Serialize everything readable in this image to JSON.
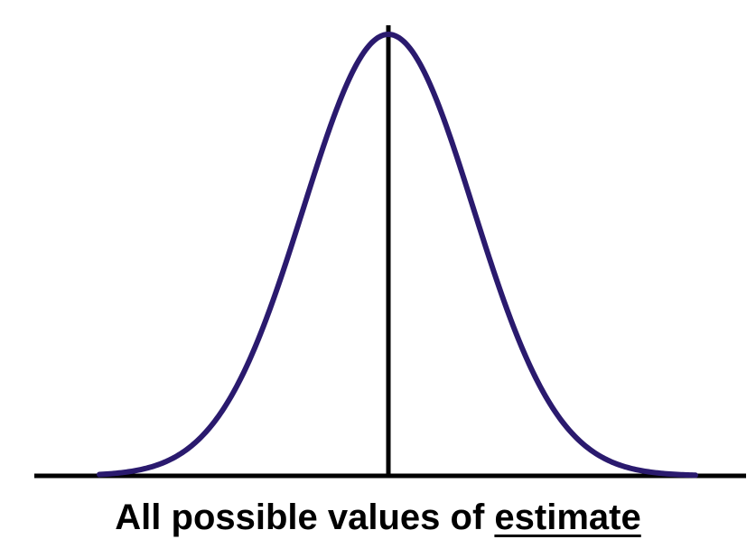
{
  "caption": {
    "prefix": "All possible values of ",
    "emphasis": "estimate"
  },
  "colors": {
    "curve": "#2a1a6e",
    "axis": "#000000",
    "background": "#ffffff"
  },
  "diagram": {
    "shape": "normal-distribution",
    "center_line": true
  }
}
